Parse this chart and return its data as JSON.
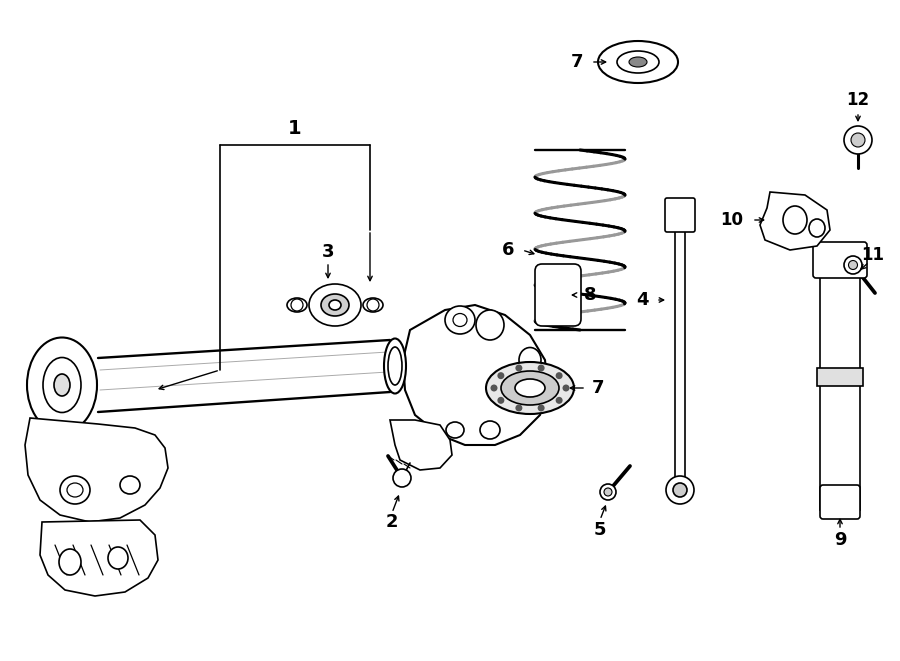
{
  "background_color": "#ffffff",
  "line_color": "#000000",
  "figure_width": 9.0,
  "figure_height": 6.61,
  "dpi": 100
}
